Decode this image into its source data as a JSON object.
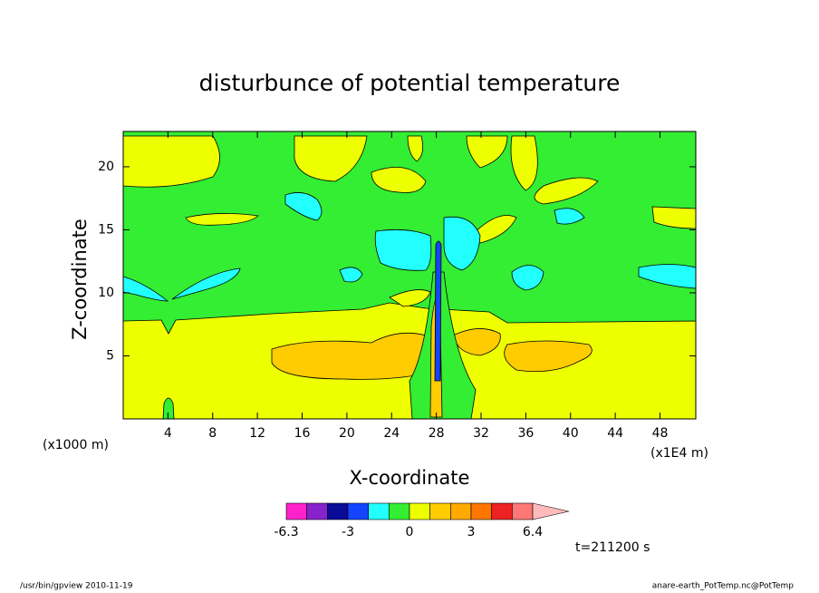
{
  "chart_data": {
    "type": "contour",
    "title": "disturbunce of potential temperature",
    "xlabel": "X-coordinate",
    "ylabel": "Z-coordinate",
    "xunit": "(x1E4 m)",
    "yunit": "(x1000 m)",
    "xlim": [
      0,
      51.2
    ],
    "xticks": [
      4,
      8,
      12,
      16,
      20,
      24,
      28,
      32,
      36,
      40,
      44,
      48
    ],
    "ylim": [
      0,
      22.8
    ],
    "yticks": [
      5,
      10,
      15,
      20
    ],
    "colorbar": {
      "colors": [
        "#ff22cc",
        "#8822cc",
        "#0a0a99",
        "#1444ff",
        "#22ffff",
        "#33ee33",
        "#eeff00",
        "#ffcc00",
        "#ffaa00",
        "#ff7700",
        "#ee2222",
        "#ff7777"
      ],
      "extend_color": "#ffbbbb",
      "boundaries": [
        -6.3,
        null,
        null,
        -3,
        null,
        null,
        0,
        null,
        null,
        3,
        null,
        null,
        6.4
      ]
    },
    "annotation": "t=211200 s",
    "footer_left": "/usr/bin/gpview  2010-11-19",
    "footer_right": "anare-earth_PotTemp.nc@PotTemp"
  }
}
